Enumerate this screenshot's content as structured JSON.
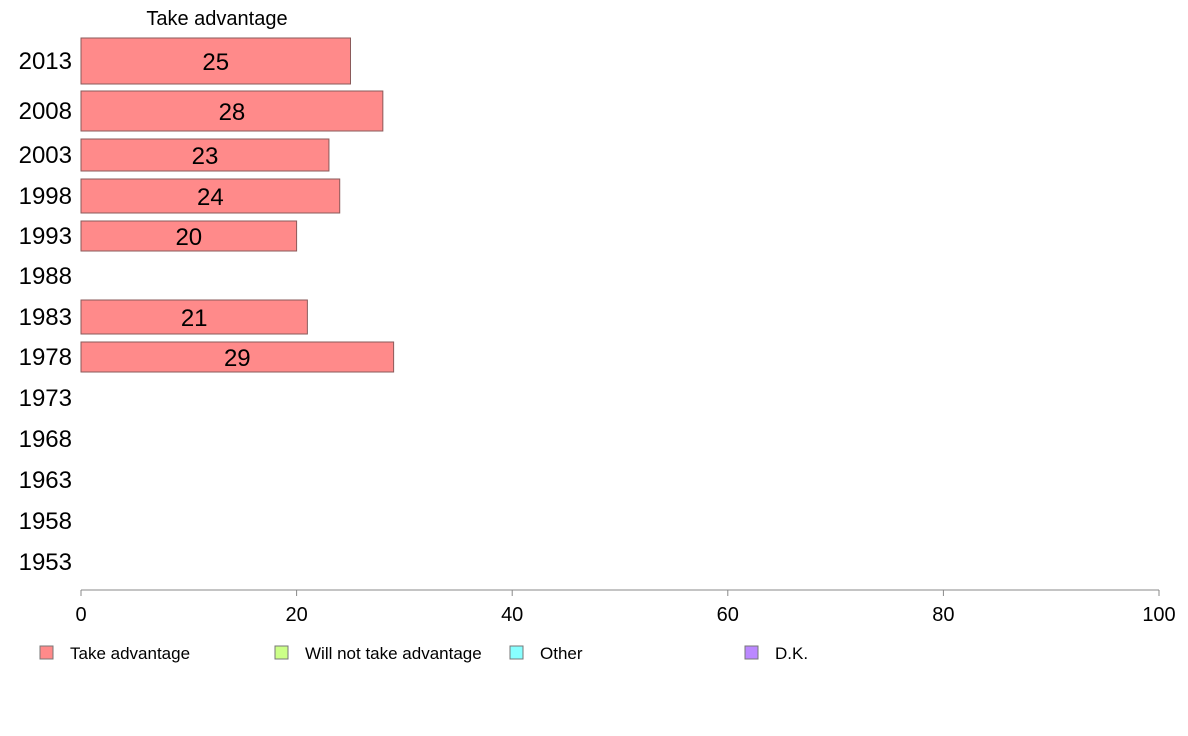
{
  "chart_data": {
    "type": "bar",
    "orientation": "horizontal",
    "title": "Take advantage",
    "categories": [
      "2013",
      "2008",
      "2003",
      "1998",
      "1993",
      "1988",
      "1983",
      "1978",
      "1973",
      "1968",
      "1963",
      "1958",
      "1953"
    ],
    "series": [
      {
        "name": "Take advantage",
        "values": [
          25,
          28,
          23,
          24,
          20,
          null,
          21,
          29,
          null,
          null,
          null,
          null,
          null
        ]
      }
    ],
    "data_labels": [
      "25",
      "28",
      "23",
      "24",
      "20",
      "",
      "21",
      "29",
      "",
      "",
      "",
      "",
      ""
    ],
    "xlim": [
      0,
      100
    ],
    "xticks": [
      0,
      20,
      40,
      60,
      80,
      100
    ],
    "xtick_labels": [
      "0",
      "20",
      "40",
      "60",
      "80",
      "100"
    ],
    "grid": false,
    "legend": {
      "placement": "bottom",
      "entries": [
        {
          "label": "Take advantage",
          "color": "#ff8a8a"
        },
        {
          "label": "Will not take advantage",
          "color": "#ccff88"
        },
        {
          "label": "Other",
          "color": "#88ffff"
        },
        {
          "label": "D.K.",
          "color": "#bb88ff"
        }
      ]
    },
    "colors": {
      "bar": "#ff8a8a",
      "bar_stroke": "#8a5a5a",
      "axis": "#888888"
    }
  }
}
